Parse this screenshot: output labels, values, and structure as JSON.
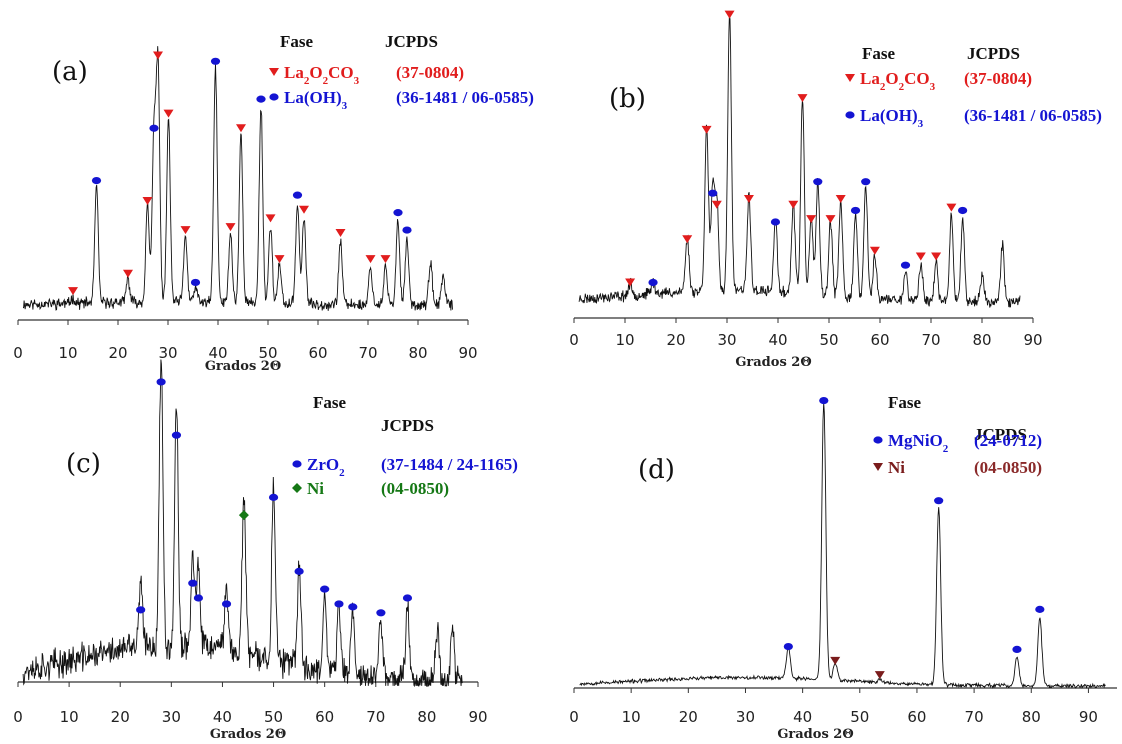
{
  "chart_data": [
    {
      "panel": "(a)",
      "type": "line",
      "xlabel": "Grados 2Θ",
      "xlim": [
        0,
        90
      ],
      "xticks": [
        0,
        10,
        20,
        30,
        40,
        50,
        60,
        70,
        80,
        90
      ],
      "data_range": [
        1,
        87
      ],
      "legend_header": {
        "phase": "Fase",
        "card": "JCPDS"
      },
      "legend": [
        {
          "marker": "triangle",
          "color": "#e11d1d",
          "text": "La₂O₂CO₃",
          "card": "(37-0804)"
        },
        {
          "marker": "circle",
          "color": "#1414d2",
          "text": "La(OH)₃",
          "card": "(36-1481 / 06-0585)"
        }
      ],
      "peaks": [
        {
          "x": 11,
          "h": 0.02,
          "m": "triangle"
        },
        {
          "x": 15.7,
          "h": 0.4,
          "m": "circle"
        },
        {
          "x": 22,
          "h": 0.08,
          "m": "triangle"
        },
        {
          "x": 25.9,
          "h": 0.33,
          "m": "triangle"
        },
        {
          "x": 27.2,
          "h": 0.58,
          "m": "circle"
        },
        {
          "x": 28,
          "h": 0.83,
          "m": "triangle"
        },
        {
          "x": 30.1,
          "h": 0.63,
          "m": "triangle"
        },
        {
          "x": 33.5,
          "h": 0.23,
          "m": "triangle"
        },
        {
          "x": 35.5,
          "h": 0.05,
          "m": "circle"
        },
        {
          "x": 39.5,
          "h": 0.81,
          "m": "circle"
        },
        {
          "x": 42.5,
          "h": 0.24,
          "m": "triangle"
        },
        {
          "x": 44.6,
          "h": 0.58,
          "m": "triangle"
        },
        {
          "x": 48.6,
          "h": 0.68,
          "m": "circle"
        },
        {
          "x": 50.5,
          "h": 0.27,
          "m": "triangle"
        },
        {
          "x": 52.3,
          "h": 0.13,
          "m": "triangle"
        },
        {
          "x": 55.9,
          "h": 0.35,
          "m": "circle"
        },
        {
          "x": 57.2,
          "h": 0.3,
          "m": "triangle"
        },
        {
          "x": 64.5,
          "h": 0.22,
          "m": "triangle"
        },
        {
          "x": 70.5,
          "h": 0.13,
          "m": "triangle"
        },
        {
          "x": 73.5,
          "h": 0.13,
          "m": "triangle"
        },
        {
          "x": 76,
          "h": 0.29,
          "m": "circle"
        },
        {
          "x": 77.8,
          "h": 0.23,
          "m": "circle"
        },
        {
          "x": 82.5,
          "h": 0.14,
          "m": null
        },
        {
          "x": 85,
          "h": 0.1,
          "m": null
        }
      ]
    },
    {
      "panel": "(b)",
      "type": "line",
      "xlabel": "Grados 2Θ",
      "xlim": [
        0,
        90
      ],
      "xticks": [
        0,
        10,
        20,
        30,
        40,
        50,
        60,
        70,
        80,
        90
      ],
      "data_range": [
        1,
        87.5
      ],
      "legend_header": {
        "phase": "Fase",
        "card": "JCPDS"
      },
      "legend": [
        {
          "marker": "triangle",
          "color": "#e11d1d",
          "text": "La₂O₂CO₃",
          "card": "(37-0804)"
        },
        {
          "marker": "circle",
          "color": "#1414d2",
          "text": "La(OH)₃",
          "card": "(36-1481 / 06-0585)"
        }
      ],
      "peaks": [
        {
          "x": 11,
          "h": 0.04,
          "m": "triangle"
        },
        {
          "x": 15.5,
          "h": 0.04,
          "m": "circle"
        },
        {
          "x": 22.2,
          "h": 0.19,
          "m": "triangle"
        },
        {
          "x": 26,
          "h": 0.57,
          "m": "triangle"
        },
        {
          "x": 27.2,
          "h": 0.35,
          "m": "circle"
        },
        {
          "x": 28,
          "h": 0.31,
          "m": "triangle"
        },
        {
          "x": 30.5,
          "h": 0.97,
          "m": "triangle"
        },
        {
          "x": 34.3,
          "h": 0.33,
          "m": "triangle"
        },
        {
          "x": 39.5,
          "h": 0.25,
          "m": "circle"
        },
        {
          "x": 43,
          "h": 0.31,
          "m": "triangle"
        },
        {
          "x": 44.8,
          "h": 0.68,
          "m": "triangle"
        },
        {
          "x": 46.5,
          "h": 0.26,
          "m": "triangle"
        },
        {
          "x": 47.8,
          "h": 0.39,
          "m": "circle"
        },
        {
          "x": 50.3,
          "h": 0.26,
          "m": "triangle"
        },
        {
          "x": 52.3,
          "h": 0.33,
          "m": "triangle"
        },
        {
          "x": 55.2,
          "h": 0.29,
          "m": "circle"
        },
        {
          "x": 57.2,
          "h": 0.39,
          "m": "circle"
        },
        {
          "x": 59,
          "h": 0.15,
          "m": "triangle"
        },
        {
          "x": 65,
          "h": 0.1,
          "m": "circle"
        },
        {
          "x": 68,
          "h": 0.13,
          "m": "triangle"
        },
        {
          "x": 71,
          "h": 0.13,
          "m": "triangle"
        },
        {
          "x": 74,
          "h": 0.3,
          "m": "triangle"
        },
        {
          "x": 76.2,
          "h": 0.29,
          "m": "circle"
        },
        {
          "x": 80,
          "h": 0.09,
          "m": null
        },
        {
          "x": 84,
          "h": 0.2,
          "m": null
        }
      ]
    },
    {
      "panel": "(c)",
      "type": "line",
      "xlabel": "Grados 2Θ",
      "xlim": [
        0,
        90
      ],
      "xticks": [
        0,
        10,
        20,
        30,
        40,
        50,
        60,
        70,
        80,
        90
      ],
      "data_range": [
        1,
        87
      ],
      "legend_header": {
        "phase": "Fase",
        "card": "JCPDS"
      },
      "legend": [
        {
          "marker": "circle",
          "color": "#1414d2",
          "text": "ZrO₂",
          "card": "(37-1484 / 24-1165)",
          "card_color": "#1414d2"
        },
        {
          "marker": "diamond",
          "color": "#157815",
          "text": "Ni",
          "card": "(04-0850)",
          "card_color": "#157815"
        }
      ],
      "peaks": [
        {
          "x": 24,
          "h": 0.21,
          "m": "circle"
        },
        {
          "x": 28,
          "h": 0.98,
          "m": "circle"
        },
        {
          "x": 31,
          "h": 0.8,
          "m": "circle"
        },
        {
          "x": 34.2,
          "h": 0.3,
          "m": "circle"
        },
        {
          "x": 35.3,
          "h": 0.25,
          "m": "circle"
        },
        {
          "x": 40.8,
          "h": 0.23,
          "m": "circle"
        },
        {
          "x": 44.2,
          "h": 0.53,
          "m": "diamond"
        },
        {
          "x": 50,
          "h": 0.59,
          "m": "circle"
        },
        {
          "x": 55,
          "h": 0.34,
          "m": "circle"
        },
        {
          "x": 60,
          "h": 0.28,
          "m": "circle"
        },
        {
          "x": 62.8,
          "h": 0.23,
          "m": "circle"
        },
        {
          "x": 65.5,
          "h": 0.22,
          "m": "circle"
        },
        {
          "x": 71,
          "h": 0.2,
          "m": "circle"
        },
        {
          "x": 76.2,
          "h": 0.25,
          "m": "circle"
        },
        {
          "x": 82,
          "h": 0.18,
          "m": null
        },
        {
          "x": 85,
          "h": 0.16,
          "m": null
        }
      ]
    },
    {
      "panel": "(d)",
      "type": "line",
      "xlabel": "Grados 2Θ",
      "xlim": [
        0,
        95
      ],
      "xticks": [
        0,
        10,
        20,
        30,
        40,
        50,
        60,
        70,
        80,
        90
      ],
      "data_range": [
        1,
        93
      ],
      "legend_header": {
        "phase": "Fase",
        "card": "JCPDS"
      },
      "legend": [
        {
          "marker": "circle",
          "color": "#1414d2",
          "text": "MgNiO₂",
          "card": "(24-0712)",
          "card_color": "#1414d2"
        },
        {
          "marker": "triangle",
          "color": "#7a1c1c",
          "text": "Ni",
          "card": "(04-0850)",
          "card_color": "#8a2a2a"
        }
      ],
      "peaks": [
        {
          "x": 37.5,
          "h": 0.11,
          "m": "circle"
        },
        {
          "x": 43.7,
          "h": 0.97,
          "m": "circle"
        },
        {
          "x": 45.7,
          "h": 0.06,
          "m": "triangle"
        },
        {
          "x": 53.5,
          "h": 0.01,
          "m": "triangle"
        },
        {
          "x": 63.8,
          "h": 0.62,
          "m": "circle"
        },
        {
          "x": 77.5,
          "h": 0.1,
          "m": "circle"
        },
        {
          "x": 81.5,
          "h": 0.24,
          "m": "circle"
        }
      ]
    }
  ]
}
